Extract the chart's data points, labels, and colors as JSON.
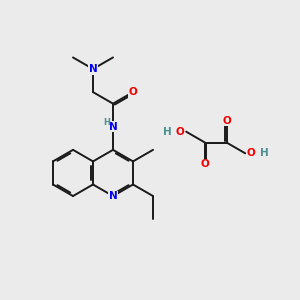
{
  "bg_color": "#ebebeb",
  "bond_color": "#1a1a1a",
  "N_color": "#0000ee",
  "O_color": "#ee0000",
  "H_color": "#4a9090",
  "bond_lw": 1.4,
  "figsize": [
    3.0,
    3.0
  ],
  "dpi": 100,
  "B": 0.38,
  "xlim": [
    0,
    10
  ],
  "ylim": [
    0,
    10
  ]
}
